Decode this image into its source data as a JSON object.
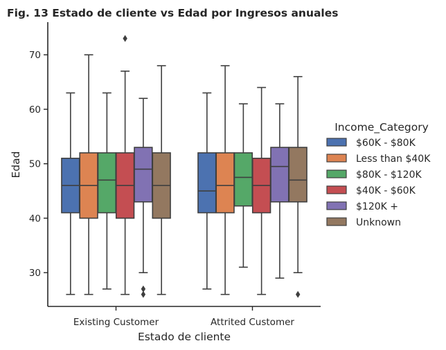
{
  "chart_data": {
    "type": "boxplot",
    "title": "Fig. 13 Estado de cliente vs Edad por Ingresos anuales",
    "xlabel": "Estado de cliente",
    "ylabel": "Edad",
    "ylim": [
      23.8,
      76
    ],
    "yticks": [
      30,
      40,
      50,
      60,
      70
    ],
    "grid": false,
    "categories": [
      "Existing Customer",
      "Attrited Customer"
    ],
    "legend": {
      "title": "Income_Category",
      "placement": "right",
      "labels": [
        "$60K - $80K",
        "Less than $40K",
        "$80K - $120K",
        "$40K - $60K",
        "$120K +",
        "Unknown"
      ]
    },
    "series": [
      {
        "color": "#4c72b0",
        "boxes": [
          {
            "whislo": 26,
            "q1": 41,
            "med": 46,
            "q3": 51,
            "whishi": 63,
            "fliers": []
          },
          {
            "whislo": 27,
            "q1": 41,
            "med": 45,
            "q3": 52,
            "whishi": 63,
            "fliers": []
          }
        ]
      },
      {
        "color": "#dd8452",
        "boxes": [
          {
            "whislo": 26,
            "q1": 40,
            "med": 46,
            "q3": 52,
            "whishi": 70,
            "fliers": []
          },
          {
            "whislo": 26,
            "q1": 41,
            "med": 46,
            "q3": 52,
            "whishi": 68,
            "fliers": []
          }
        ]
      },
      {
        "color": "#55a868",
        "boxes": [
          {
            "whislo": 27,
            "q1": 41,
            "med": 47,
            "q3": 52,
            "whishi": 63,
            "fliers": []
          },
          {
            "whislo": 31,
            "q1": 42.25,
            "med": 47.5,
            "q3": 52,
            "whishi": 61,
            "fliers": []
          }
        ]
      },
      {
        "color": "#c44e52",
        "boxes": [
          {
            "whislo": 26,
            "q1": 40,
            "med": 46,
            "q3": 52,
            "whishi": 67,
            "fliers": [
              73
            ]
          },
          {
            "whislo": 26,
            "q1": 41,
            "med": 46,
            "q3": 51,
            "whishi": 64,
            "fliers": []
          }
        ]
      },
      {
        "color": "#8172b3",
        "boxes": [
          {
            "whislo": 30,
            "q1": 43,
            "med": 49,
            "q3": 53,
            "whishi": 62,
            "fliers": [
              27,
              26
            ]
          },
          {
            "whislo": 29,
            "q1": 43,
            "med": 49.5,
            "q3": 53,
            "whishi": 61,
            "fliers": []
          }
        ]
      },
      {
        "color": "#937860",
        "boxes": [
          {
            "whislo": 26,
            "q1": 40,
            "med": 46,
            "q3": 52,
            "whishi": 68,
            "fliers": []
          },
          {
            "whislo": 30,
            "q1": 43,
            "med": 47,
            "q3": 53,
            "whishi": 66,
            "fliers": [
              26
            ]
          }
        ]
      }
    ]
  }
}
